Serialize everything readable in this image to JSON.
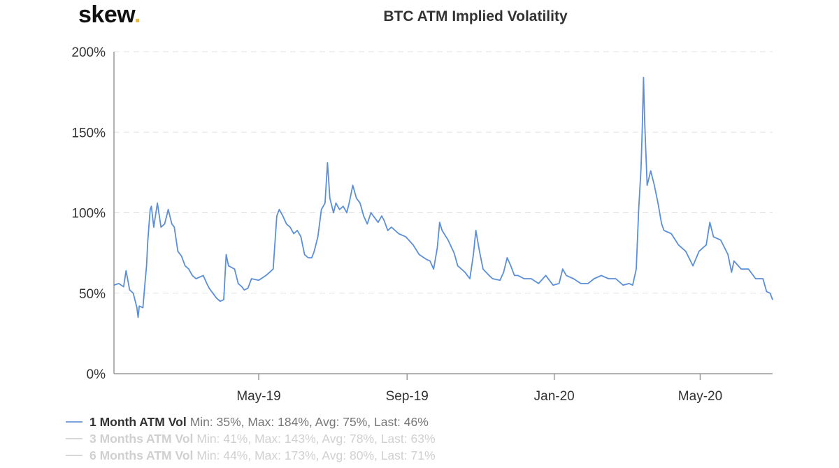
{
  "logo": {
    "text": "skew",
    "dot": ".",
    "accent": "#e6b84a"
  },
  "chart_data": {
    "type": "line",
    "title": "BTC ATM Implied Volatility",
    "ylim": [
      0,
      200
    ],
    "yticks": [
      0,
      50,
      100,
      150,
      200
    ],
    "ytick_labels": [
      "0%",
      "50%",
      "100%",
      "150%",
      "200%"
    ],
    "xlim": [
      "2019-01-01",
      "2020-06-30"
    ],
    "xticks": [
      "2019-05-01",
      "2019-09-01",
      "2020-01-01",
      "2020-05-01"
    ],
    "xtick_labels": [
      "May-19",
      "Sep-19",
      "Jan-20",
      "May-20"
    ],
    "grid": "horizontal dashed",
    "legend_placement": "bottom-left",
    "series": [
      {
        "name": "1 Month ATM Vol",
        "stats": "Min: 35%, Max: 184%, Avg: 75%, Last: 46%",
        "color": "#5b8fd9",
        "visible": true,
        "x": [
          "2019-01-01",
          "2019-01-05",
          "2019-01-09",
          "2019-01-11",
          "2019-01-14",
          "2019-01-17",
          "2019-01-20",
          "2019-01-21",
          "2019-01-22",
          "2019-01-25",
          "2019-01-27",
          "2019-01-28",
          "2019-01-29",
          "2019-01-31",
          "2019-02-01",
          "2019-02-03",
          "2019-02-06",
          "2019-02-09",
          "2019-02-12",
          "2019-02-15",
          "2019-02-18",
          "2019-02-20",
          "2019-02-23",
          "2019-02-26",
          "2019-03-01",
          "2019-03-04",
          "2019-03-07",
          "2019-03-10",
          "2019-03-16",
          "2019-03-19",
          "2019-03-21",
          "2019-03-24",
          "2019-03-27",
          "2019-03-30",
          "2019-04-02",
          "2019-04-04",
          "2019-04-06",
          "2019-04-11",
          "2019-04-14",
          "2019-04-17",
          "2019-04-19",
          "2019-04-22",
          "2019-04-25",
          "2019-05-01",
          "2019-05-07",
          "2019-05-10",
          "2019-05-13",
          "2019-05-16",
          "2019-05-18",
          "2019-05-21",
          "2019-05-24",
          "2019-05-27",
          "2019-05-30",
          "2019-06-02",
          "2019-06-05",
          "2019-06-08",
          "2019-06-11",
          "2019-06-14",
          "2019-06-16",
          "2019-06-19",
          "2019-06-22",
          "2019-06-25",
          "2019-06-27",
          "2019-06-29",
          "2019-07-02",
          "2019-07-04",
          "2019-07-07",
          "2019-07-10",
          "2019-07-13",
          "2019-07-15",
          "2019-07-18",
          "2019-07-21",
          "2019-07-24",
          "2019-07-27",
          "2019-07-30",
          "2019-08-02",
          "2019-08-08",
          "2019-08-11",
          "2019-08-13",
          "2019-08-16",
          "2019-08-19",
          "2019-08-25",
          "2019-08-31",
          "2019-09-06",
          "2019-09-11",
          "2019-09-17",
          "2019-09-20",
          "2019-09-23",
          "2019-09-26",
          "2019-09-28",
          "2019-09-30",
          "2019-10-05",
          "2019-10-10",
          "2019-10-13",
          "2019-10-19",
          "2019-10-23",
          "2019-10-26",
          "2019-10-28",
          "2019-10-31",
          "2019-11-03",
          "2019-11-08",
          "2019-11-11",
          "2019-11-17",
          "2019-11-20",
          "2019-11-23",
          "2019-11-26",
          "2019-11-29",
          "2019-12-02",
          "2019-12-07",
          "2019-12-13",
          "2019-12-19",
          "2019-12-25",
          "2019-12-31",
          "2020-01-05",
          "2020-01-08",
          "2020-01-11",
          "2020-01-17",
          "2020-01-23",
          "2020-01-29",
          "2020-02-03",
          "2020-02-09",
          "2020-02-15",
          "2020-02-21",
          "2020-02-27",
          "2020-03-03",
          "2020-03-06",
          "2020-03-09",
          "2020-03-11",
          "2020-03-13",
          "2020-03-14",
          "2020-03-15",
          "2020-03-16",
          "2020-03-18",
          "2020-03-21",
          "2020-03-24",
          "2020-03-27",
          "2020-03-30",
          "2020-04-01",
          "2020-04-07",
          "2020-04-13",
          "2020-04-19",
          "2020-04-25",
          "2020-04-30",
          "2020-05-06",
          "2020-05-09",
          "2020-05-12",
          "2020-05-18",
          "2020-05-24",
          "2020-05-27",
          "2020-05-29",
          "2020-06-04",
          "2020-06-10",
          "2020-06-16",
          "2020-06-22",
          "2020-06-25",
          "2020-06-28",
          "2020-06-30"
        ],
        "y": [
          55,
          56,
          54,
          64,
          52,
          50,
          41,
          35,
          42,
          41,
          59,
          67,
          82,
          102,
          104,
          91,
          106,
          91,
          93,
          102,
          93,
          91,
          76,
          73,
          67,
          65,
          61,
          59,
          61,
          56,
          53,
          50,
          47,
          45,
          46,
          74,
          67,
          65,
          56,
          54,
          52,
          53,
          59,
          58,
          61,
          63,
          65,
          98,
          102,
          98,
          93,
          91,
          87,
          89,
          85,
          74,
          72,
          72,
          76,
          85,
          102,
          106,
          131,
          109,
          100,
          106,
          102,
          104,
          100,
          106,
          117,
          109,
          106,
          98,
          93,
          100,
          94,
          98,
          95,
          89,
          91,
          87,
          85,
          80,
          74,
          71,
          70,
          65,
          78,
          94,
          89,
          83,
          75,
          67,
          63,
          59,
          74,
          89,
          76,
          65,
          61,
          59,
          58,
          63,
          72,
          67,
          61,
          61,
          59,
          59,
          56,
          61,
          55,
          56,
          65,
          61,
          59,
          56,
          56,
          59,
          61,
          59,
          59,
          55,
          56,
          55,
          65,
          102,
          128,
          154,
          184,
          156,
          117,
          126,
          117,
          106,
          93,
          89,
          87,
          80,
          76,
          67,
          76,
          80,
          94,
          85,
          83,
          74,
          63,
          70,
          65,
          65,
          59,
          59,
          51,
          50,
          46
        ]
      },
      {
        "name": "3 Months ATM Vol",
        "stats": "Min: 41%, Max: 143%, Avg: 78%, Last: 63%",
        "color": "#d0d0d0",
        "visible": false
      },
      {
        "name": "6 Months ATM Vol",
        "stats": "Min: 44%, Max: 173%, Avg: 80%, Last: 71%",
        "color": "#d0d0d0",
        "visible": false
      }
    ]
  }
}
